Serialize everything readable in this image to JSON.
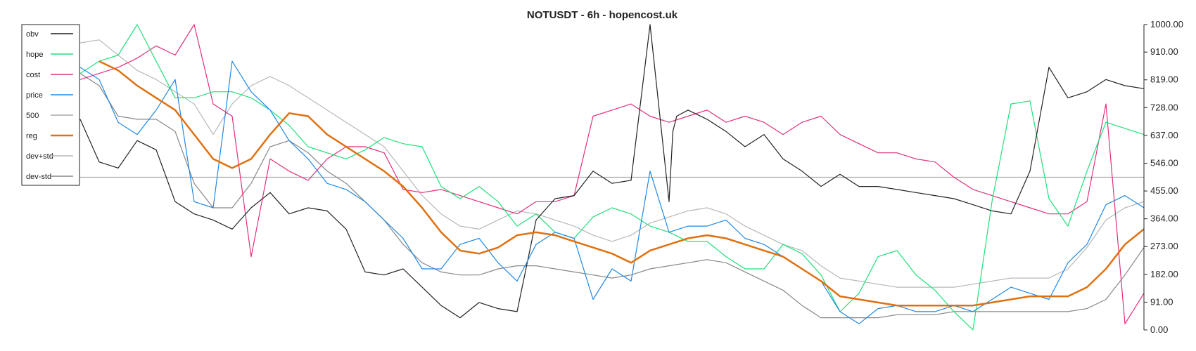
{
  "chart_data": {
    "type": "line",
    "title": "NOTUSDT - 6h - hopencost.uk",
    "xlabel": "",
    "ylabel": "",
    "ylim": [
      0,
      1000
    ],
    "y_ticks": [
      "0.00",
      "91.00",
      "182.00",
      "273.00",
      "364.00",
      "455.00",
      "546.00",
      "637.00",
      "728.00",
      "819.00",
      "910.00",
      "1000.00"
    ],
    "reference_line": 500,
    "grid": false,
    "legend_position": "top-left",
    "x_start_index": 0,
    "x_end_index": 280,
    "series": [
      {
        "name": "obv",
        "color": "#222222",
        "x": [
          0,
          5,
          10,
          15,
          20,
          25,
          30,
          35,
          40,
          45,
          50,
          55,
          60,
          65,
          70,
          75,
          80,
          85,
          90,
          95,
          100,
          105,
          110,
          115,
          120,
          125,
          130,
          135,
          140,
          145,
          150,
          155,
          156,
          157,
          160,
          165,
          170,
          175,
          180,
          185,
          190,
          195,
          200,
          205,
          210,
          215,
          220,
          225,
          230,
          235,
          240,
          245,
          250,
          255,
          260,
          265,
          270,
          275,
          280
        ],
        "values": [
          690,
          550,
          530,
          620,
          590,
          420,
          380,
          360,
          330,
          400,
          450,
          380,
          400,
          390,
          330,
          190,
          180,
          200,
          140,
          80,
          40,
          90,
          70,
          60,
          360,
          430,
          440,
          520,
          480,
          490,
          1000,
          420,
          650,
          700,
          720,
          690,
          650,
          600,
          640,
          560,
          520,
          470,
          510,
          470,
          470,
          460,
          450,
          440,
          430,
          410,
          390,
          380,
          520,
          860,
          760,
          780,
          820,
          800,
          790
        ]
      },
      {
        "name": "hope",
        "color": "#1ee07a",
        "x": [
          0,
          5,
          10,
          15,
          20,
          25,
          30,
          35,
          40,
          45,
          50,
          55,
          60,
          65,
          70,
          75,
          80,
          85,
          90,
          95,
          100,
          105,
          110,
          115,
          120,
          125,
          130,
          135,
          140,
          145,
          150,
          155,
          160,
          165,
          170,
          175,
          180,
          185,
          190,
          195,
          200,
          205,
          210,
          215,
          220,
          225,
          230,
          235,
          240,
          245,
          250,
          255,
          260,
          265,
          270,
          275,
          280
        ],
        "values": [
          840,
          880,
          900,
          1000,
          880,
          760,
          760,
          780,
          780,
          760,
          720,
          670,
          600,
          580,
          560,
          590,
          630,
          610,
          600,
          470,
          430,
          470,
          420,
          340,
          380,
          320,
          300,
          370,
          400,
          380,
          340,
          320,
          290,
          290,
          240,
          200,
          200,
          280,
          250,
          180,
          60,
          120,
          240,
          260,
          180,
          130,
          60,
          0,
          420,
          740,
          750,
          430,
          340,
          520,
          680,
          660,
          640
        ]
      },
      {
        "name": "cost",
        "color": "#e0307a",
        "x": [
          0,
          5,
          10,
          15,
          20,
          25,
          30,
          35,
          40,
          45,
          50,
          55,
          60,
          65,
          70,
          75,
          80,
          85,
          90,
          95,
          100,
          105,
          110,
          115,
          120,
          125,
          130,
          135,
          140,
          145,
          150,
          155,
          160,
          165,
          170,
          175,
          180,
          185,
          190,
          195,
          200,
          205,
          210,
          215,
          220,
          225,
          230,
          235,
          240,
          245,
          250,
          255,
          260,
          265,
          270,
          275,
          280
        ],
        "values": [
          820,
          840,
          860,
          890,
          930,
          900,
          1000,
          740,
          700,
          240,
          560,
          520,
          490,
          560,
          600,
          600,
          580,
          460,
          450,
          460,
          440,
          420,
          400,
          380,
          420,
          420,
          440,
          700,
          720,
          740,
          700,
          680,
          700,
          720,
          680,
          700,
          680,
          640,
          680,
          700,
          640,
          610,
          580,
          580,
          560,
          550,
          500,
          460,
          440,
          420,
          400,
          380,
          380,
          420,
          740,
          20,
          120
        ]
      },
      {
        "name": "price",
        "color": "#1e88e5",
        "x": [
          0,
          5,
          10,
          15,
          20,
          25,
          30,
          35,
          40,
          45,
          50,
          55,
          60,
          65,
          70,
          75,
          80,
          85,
          90,
          95,
          100,
          105,
          110,
          115,
          120,
          125,
          130,
          135,
          140,
          145,
          150,
          155,
          160,
          165,
          170,
          175,
          180,
          185,
          190,
          195,
          200,
          205,
          210,
          215,
          220,
          225,
          230,
          235,
          240,
          245,
          250,
          255,
          260,
          265,
          270,
          275,
          280
        ],
        "values": [
          860,
          820,
          680,
          640,
          720,
          820,
          420,
          400,
          880,
          780,
          720,
          620,
          560,
          480,
          460,
          420,
          360,
          300,
          200,
          200,
          280,
          300,
          220,
          160,
          280,
          320,
          300,
          100,
          200,
          160,
          520,
          320,
          340,
          340,
          360,
          300,
          280,
          240,
          200,
          160,
          60,
          20,
          70,
          80,
          60,
          60,
          80,
          60,
          100,
          140,
          120,
          100,
          220,
          280,
          410,
          440,
          400
        ]
      },
      {
        "name": "500",
        "color": "#aaaaaa",
        "x": [
          0,
          280
        ],
        "values": [
          500,
          500
        ]
      },
      {
        "name": "reg",
        "color": "#e07010",
        "x": [
          5,
          10,
          15,
          20,
          25,
          30,
          35,
          40,
          45,
          50,
          55,
          60,
          65,
          70,
          75,
          80,
          85,
          90,
          95,
          100,
          105,
          110,
          115,
          120,
          125,
          130,
          135,
          140,
          145,
          150,
          155,
          160,
          165,
          170,
          175,
          180,
          185,
          190,
          195,
          200,
          205,
          210,
          215,
          220,
          225,
          230,
          235,
          240,
          245,
          250,
          255,
          260,
          265,
          270,
          275,
          280
        ],
        "values": [
          880,
          850,
          800,
          760,
          720,
          640,
          560,
          530,
          560,
          640,
          710,
          700,
          640,
          600,
          560,
          520,
          470,
          400,
          320,
          260,
          250,
          270,
          310,
          320,
          310,
          290,
          270,
          250,
          220,
          260,
          280,
          300,
          310,
          300,
          280,
          260,
          240,
          200,
          160,
          110,
          100,
          90,
          80,
          80,
          80,
          80,
          80,
          90,
          100,
          110,
          110,
          110,
          140,
          200,
          280,
          330
        ]
      },
      {
        "name": "dev+std",
        "color": "#b8b8b8",
        "x": [
          0,
          5,
          10,
          15,
          20,
          25,
          30,
          35,
          40,
          45,
          50,
          55,
          60,
          65,
          70,
          75,
          80,
          85,
          90,
          95,
          100,
          105,
          110,
          115,
          120,
          125,
          130,
          135,
          140,
          145,
          150,
          155,
          160,
          165,
          170,
          175,
          180,
          185,
          190,
          195,
          200,
          205,
          210,
          215,
          220,
          225,
          230,
          235,
          240,
          245,
          250,
          255,
          260,
          265,
          270,
          275,
          280
        ],
        "values": [
          940,
          950,
          900,
          850,
          820,
          780,
          740,
          640,
          740,
          800,
          830,
          800,
          760,
          720,
          680,
          640,
          600,
          520,
          440,
          380,
          340,
          330,
          360,
          390,
          380,
          360,
          340,
          310,
          290,
          310,
          350,
          370,
          390,
          400,
          380,
          340,
          310,
          280,
          260,
          210,
          170,
          160,
          150,
          140,
          140,
          140,
          140,
          150,
          160,
          170,
          170,
          170,
          200,
          270,
          360,
          400,
          420
        ]
      },
      {
        "name": "dev-std",
        "color": "#888888",
        "x": [
          0,
          5,
          10,
          15,
          20,
          25,
          30,
          35,
          40,
          45,
          50,
          55,
          60,
          65,
          70,
          75,
          80,
          85,
          90,
          95,
          100,
          105,
          110,
          115,
          120,
          125,
          130,
          135,
          140,
          145,
          150,
          155,
          160,
          165,
          170,
          175,
          180,
          185,
          190,
          195,
          200,
          205,
          210,
          215,
          220,
          225,
          230,
          235,
          240,
          245,
          250,
          255,
          260,
          265,
          270,
          275,
          280
        ],
        "values": [
          840,
          800,
          700,
          690,
          690,
          650,
          480,
          400,
          400,
          480,
          600,
          620,
          580,
          520,
          480,
          420,
          360,
          280,
          220,
          190,
          180,
          180,
          200,
          210,
          210,
          200,
          190,
          180,
          170,
          180,
          200,
          210,
          220,
          230,
          220,
          190,
          160,
          130,
          80,
          40,
          40,
          40,
          40,
          50,
          50,
          50,
          60,
          60,
          60,
          60,
          60,
          60,
          60,
          70,
          100,
          180,
          270
        ]
      }
    ]
  }
}
